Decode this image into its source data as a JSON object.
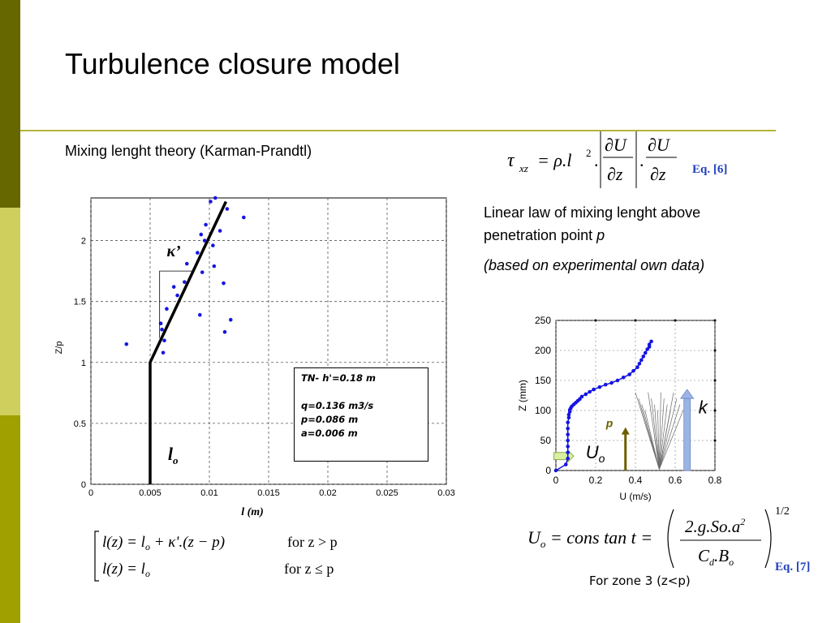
{
  "slide": {
    "title": "Turbulence closure model",
    "subtitle": "Mixing lenght theory (Karman-Prandtl)",
    "linear_law_line1": "Linear law of mixing lenght  above",
    "linear_law_line2": "penetration point ",
    "linear_law_p": "p",
    "based_on": "(based on experimental own data)",
    "zone_note": "For zone 3 (z<p)",
    "eq6_label": "Eq. [6]",
    "eq7_label": "Eq. [7]",
    "colors": {
      "sidebar_dark": "#676700",
      "sidebar_light": "#cfcf5d",
      "sidebar_mid": "#a0a000",
      "rule": "#b3b33c",
      "eq_ref": "#1f3fbf"
    }
  },
  "equations": {
    "eq6_lhs": "τ",
    "eq6_lhs_sub": "xz",
    "eq6_rhs": "= ρ.l",
    "eq6_exp": "2",
    "eq6_dU": "∂U",
    "eq6_dz": "∂z",
    "law_row1_lhs": "l(z) = l",
    "law_row1_sub": "o",
    "law_row1_rest": " + κ'.(z − p)",
    "law_row1_cond": "for  z > p",
    "law_row2_lhs": "l(z) = l",
    "law_row2_sub": "o",
    "law_row2_cond": "for  z ≤ p",
    "eq7_lhs": "U",
    "eq7_lhs_sub": "o",
    "eq7_mid": " = cons tan t = ",
    "eq7_num": "2.g.So.a",
    "eq7_num_exp": "2",
    "eq7_den": "C",
    "eq7_den_sub1": "d",
    "eq7_den_mid": ".B",
    "eq7_den_sub2": "o",
    "eq7_power": "1/2"
  },
  "chart_data": [
    {
      "type": "scatter",
      "title": "",
      "xlabel": "l (m)",
      "ylabel": "Z/p",
      "xlim": [
        0,
        0.03
      ],
      "ylim": [
        0,
        2.35
      ],
      "x_ticks": [
        "0",
        "0.005",
        "0.01",
        "0.015",
        "0.02",
        "0.025",
        "0.03"
      ],
      "y_ticks": [
        "0",
        "0.5",
        "1",
        "1.5",
        "2"
      ],
      "grid": true,
      "series": [
        {
          "kind": "points",
          "x": [
            0.003,
            0.0061,
            0.0062,
            0.006,
            0.0059,
            0.0064,
            0.007,
            0.0073,
            0.0079,
            0.0081,
            0.009,
            0.0094,
            0.0096,
            0.0093,
            0.0097,
            0.0092,
            0.0103,
            0.0104,
            0.0101,
            0.0109,
            0.0105,
            0.0115,
            0.0118,
            0.0113,
            0.0112,
            0.0129
          ],
          "y": [
            1.15,
            1.08,
            1.18,
            1.27,
            1.32,
            1.44,
            1.62,
            1.55,
            1.66,
            1.81,
            1.9,
            1.74,
            2.0,
            2.05,
            2.13,
            1.39,
            1.96,
            1.79,
            2.32,
            2.08,
            2.35,
            2.26,
            1.35,
            1.25,
            1.65,
            2.19
          ]
        },
        {
          "kind": "fit-line",
          "x": [
            0.005,
            0.005,
            0.0114
          ],
          "y": [
            0,
            1.0,
            2.32
          ]
        }
      ],
      "annotations": {
        "kappa_label": "κ’",
        "lo_label": "l",
        "lo_sub": "o",
        "info_line1": "TN- h'=0.18 m",
        "info_line2": "q=0.136 m3/s",
        "info_line3": "p=0.086 m",
        "info_line4": "a=0.006 m"
      }
    },
    {
      "type": "line",
      "title": "",
      "xlabel": "U (m/s)",
      "ylabel": "Z (mm)",
      "xlim": [
        0,
        0.8
      ],
      "ylim": [
        0,
        250
      ],
      "x_ticks": [
        "0",
        "0.2",
        "0.4",
        "0.6",
        "0.8"
      ],
      "y_ticks": [
        "0",
        "50",
        "100",
        "150",
        "200",
        "250"
      ],
      "grid": true,
      "series": [
        {
          "kind": "velocity-profile",
          "x": [
            0.0,
            0.05,
            0.06,
            0.06,
            0.06,
            0.06,
            0.06,
            0.06,
            0.06,
            0.065,
            0.065,
            0.07,
            0.07,
            0.075,
            0.08,
            0.09,
            0.1,
            0.11,
            0.12,
            0.13,
            0.15,
            0.17,
            0.19,
            0.22,
            0.25,
            0.28,
            0.31,
            0.34,
            0.37,
            0.39,
            0.41,
            0.42,
            0.43,
            0.44,
            0.45,
            0.46,
            0.47,
            0.47,
            0.48
          ],
          "y": [
            0,
            10,
            20,
            30,
            40,
            50,
            60,
            70,
            80,
            88,
            93,
            98,
            101,
            104,
            107,
            110,
            113,
            116,
            119,
            123,
            127,
            131,
            135,
            139,
            143,
            146,
            150,
            155,
            160,
            166,
            172,
            178,
            184,
            190,
            196,
            202,
            206,
            210,
            215
          ]
        }
      ],
      "annotations": {
        "p_label": "p",
        "k_label": "k",
        "uo_label": "U",
        "uo_sub": "o"
      }
    }
  ]
}
